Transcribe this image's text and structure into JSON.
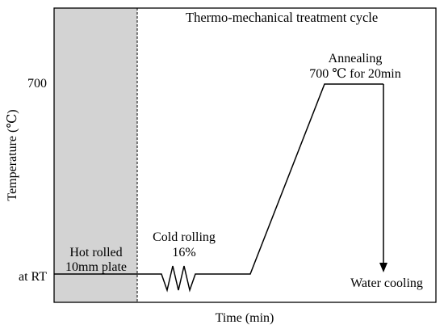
{
  "title": "Thermo-mechanical treatment cycle",
  "axes": {
    "x_label": "Time (min)",
    "y_label": "Temperature (℃)",
    "y_ticks": {
      "high": "700",
      "low": "at RT"
    }
  },
  "stages": {
    "hot_rolled": {
      "line1": "Hot rolled",
      "line2": "10mm plate"
    },
    "cold_rolling": {
      "line1": "Cold rolling",
      "line2": "16%"
    },
    "annealing": {
      "line1": "Annealing",
      "line2": "700 ℃ for 20min"
    },
    "water_cooling": {
      "line1": "Water cooling"
    }
  },
  "colors": {
    "shaded_region": "#d3d3d3",
    "line": "#000000",
    "frame": "#000000"
  }
}
